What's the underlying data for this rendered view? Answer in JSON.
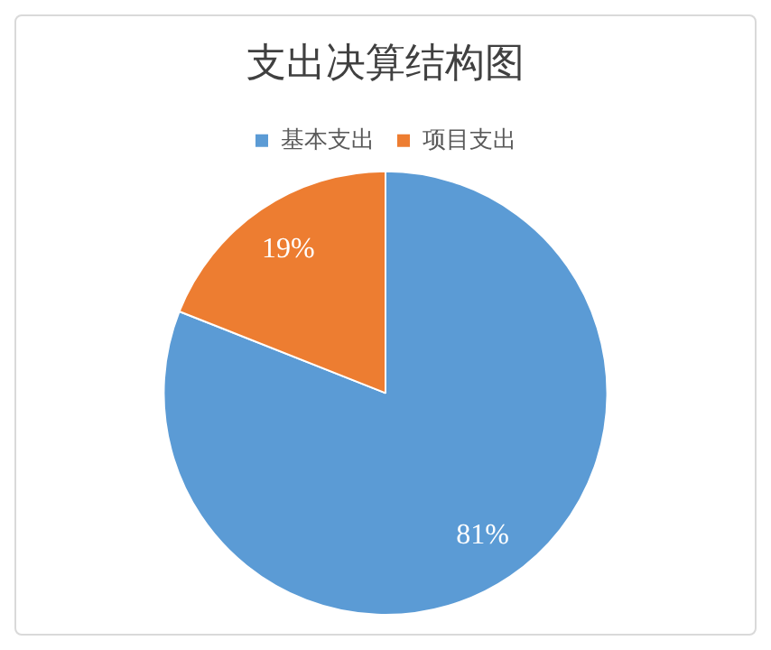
{
  "chart_data": {
    "type": "pie",
    "title": "支出决算结构图",
    "categories": [
      "基本支出",
      "项目支出"
    ],
    "values": [
      81,
      19
    ],
    "colors": [
      "#5b9bd5",
      "#ed7d31"
    ],
    "value_labels": [
      "81%",
      "19%"
    ],
    "legend": "top"
  }
}
